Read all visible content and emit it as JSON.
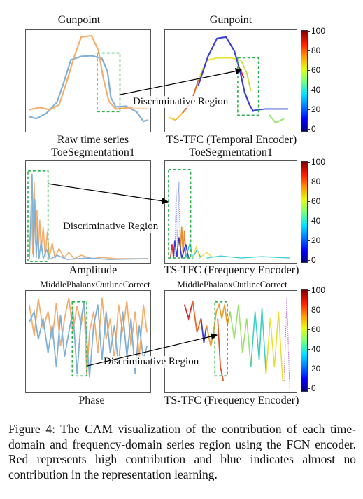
{
  "figure": {
    "rows": [
      {
        "left": {
          "title": "Gunpoint",
          "xlabel": "Raw time series"
        },
        "right": {
          "title": "Gunpoint",
          "xlabel": "TS-TFC (Temporal Encoder)"
        },
        "region_label": "Discriminative Region",
        "colorbar_ticks": [
          "100",
          "80",
          "60",
          "40",
          "20",
          "0"
        ]
      },
      {
        "left": {
          "title": "ToeSegmentation1",
          "xlabel": "Amplitude"
        },
        "right": {
          "title": "ToeSegmentation1",
          "xlabel": "TS-TFC (Frequency Encoder)"
        },
        "region_label": "Discriminative Region",
        "colorbar_ticks": [
          "100",
          "80",
          "60",
          "40",
          "20",
          "0"
        ]
      },
      {
        "left": {
          "title": "MiddlePhalanxOutlineCorrect",
          "xlabel": "Phase"
        },
        "right": {
          "title": "MiddlePhalanxOutlineCorrect",
          "xlabel": "TS-TFC (Frequency Encoder)"
        },
        "region_label": "Discriminative Region",
        "colorbar_ticks": [
          "100",
          "80",
          "60",
          "40",
          "20",
          "0"
        ]
      }
    ],
    "colors": {
      "series_blue": "#7fb1d8",
      "series_orange": "#f6ad6c",
      "region_box": "#2eb24a",
      "arrow": "#000000"
    }
  },
  "caption": "Figure 4: The CAM visualization of the contribution of each time-domain and frequency-domain series region using the FCN encoder. Red represents high contribution and blue indicates almost no contribution in the representation learning."
}
